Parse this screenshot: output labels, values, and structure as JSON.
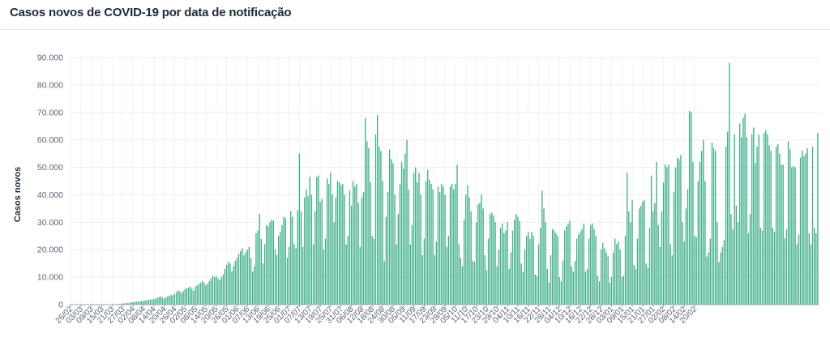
{
  "chart_data": {
    "type": "bar",
    "title": "Casos novos de COVID-19 por data de notificação",
    "ylabel": "Casos novos",
    "xlabel": "",
    "ylim": [
      0,
      90000
    ],
    "y_ticks": [
      "0",
      "10.000",
      "20.000",
      "30.000",
      "40.000",
      "50.000",
      "60.000",
      "70.000",
      "80.000",
      "90.000"
    ],
    "x_tick_labels": [
      "26/02",
      "03/03",
      "09/03",
      "15/03",
      "21/03",
      "27/03",
      "02/04",
      "08/04",
      "14/04",
      "20/04",
      "26/04",
      "02/05",
      "08/05",
      "14/05",
      "20/05",
      "26/05",
      "01/06",
      "07/06",
      "13/06",
      "19/06",
      "25/06",
      "01/07",
      "07/07",
      "13/07",
      "19/07",
      "25/07",
      "31/07",
      "06/08",
      "12/08",
      "18/08",
      "24/08",
      "30/08",
      "05/09",
      "11/09",
      "17/09",
      "23/09",
      "29/09",
      "05/10",
      "11/10",
      "17/10",
      "23/10",
      "29/10",
      "04/11",
      "10/11",
      "16/11",
      "22/11",
      "28/11",
      "04/12",
      "10/12",
      "16/12",
      "22/12",
      "28/12",
      "03/01",
      "09/01",
      "15/01",
      "21/01",
      "27/01",
      "02/02",
      "08/02",
      "14/02",
      "20/02"
    ],
    "grid": true,
    "bar_color": "#3dae86",
    "first_date": "26/02",
    "last_date": "22/02",
    "values": [
      1,
      0,
      0,
      0,
      0,
      0,
      0,
      0,
      0,
      0,
      1,
      0,
      1,
      1,
      5,
      5,
      10,
      25,
      40,
      50,
      80,
      90,
      100,
      110,
      130,
      150,
      170,
      200,
      230,
      260,
      400,
      450,
      500,
      600,
      700,
      800,
      900,
      1000,
      1050,
      1100,
      1200,
      1300,
      1400,
      1500,
      1600,
      1700,
      1800,
      1900,
      2000,
      2200,
      2500,
      2800,
      3000,
      2500,
      2200,
      2600,
      3000,
      3200,
      3600,
      3400,
      3900,
      4500,
      5200,
      4800,
      4200,
      5000,
      5600,
      6000,
      6200,
      6600,
      5800,
      5000,
      6500,
      7000,
      7500,
      8000,
      8600,
      8000,
      7000,
      7600,
      8500,
      9500,
      10500,
      10000,
      10400,
      9600,
      9000,
      10000,
      11000,
      13000,
      14500,
      15500,
      15000,
      12000,
      14000,
      16000,
      17000,
      18500,
      19500,
      20500,
      18000,
      19000,
      20000,
      21000,
      17000,
      12000,
      14000,
      26000,
      27000,
      33000,
      24000,
      15000,
      22000,
      29000,
      28500,
      30000,
      31000,
      30500,
      20000,
      18000,
      25000,
      26500,
      29000,
      32000,
      31500,
      17000,
      21000,
      34000,
      32000,
      22000,
      20500,
      34500,
      55000,
      34000,
      21000,
      39000,
      42000,
      39500,
      46500,
      40000,
      22000,
      34000,
      46500,
      47000,
      37500,
      38500,
      20000,
      24000,
      46000,
      44000,
      48000,
      40000,
      30000,
      39000,
      45000,
      44500,
      43500,
      44000,
      40000,
      22000,
      25000,
      41500,
      36000,
      45000,
      43000,
      44000,
      37000,
      21000,
      39000,
      41000,
      68000,
      59500,
      57000,
      44500,
      25000,
      24000,
      62000,
      69000,
      57500,
      56000,
      45000,
      16000,
      32000,
      41000,
      56500,
      53000,
      51500,
      40000,
      22000,
      33000,
      44000,
      52000,
      49500,
      55000,
      60000,
      42000,
      22000,
      29000,
      48000,
      50000,
      44500,
      48000,
      40000,
      18000,
      24000,
      45000,
      49000,
      45500,
      44000,
      42000,
      18000,
      23000,
      43000,
      41000,
      44000,
      43000,
      40000,
      21000,
      25000,
      43000,
      44000,
      42000,
      44000,
      51000,
      22000,
      17000,
      14000,
      31000,
      40000,
      43500,
      39000,
      34000,
      16000,
      15500,
      30000,
      36500,
      37000,
      40000,
      35000,
      18000,
      12500,
      24000,
      33000,
      33500,
      32500,
      30000,
      14000,
      20000,
      28000,
      29500,
      26000,
      27000,
      30000,
      13000,
      19000,
      27000,
      31000,
      33000,
      32000,
      30500,
      15000,
      12000,
      20000,
      25000,
      26500,
      24000,
      26500,
      25000,
      11000,
      10500,
      22000,
      28000,
      41500,
      35000,
      30000,
      13000,
      8000,
      18000,
      27500,
      27000,
      26000,
      25000,
      10000,
      8500,
      16000,
      27000,
      28500,
      29500,
      30500,
      14000,
      12000,
      16000,
      24000,
      25500,
      26500,
      27500,
      29500,
      12000,
      13000,
      24000,
      29000,
      29500,
      27500,
      25000,
      10500,
      8500,
      20000,
      22500,
      20500,
      19000,
      17500,
      8000,
      10000,
      19000,
      24000,
      22000,
      23000,
      20000,
      10000,
      10500,
      25000,
      48000,
      34000,
      30000,
      38000,
      14500,
      13000,
      24000,
      35000,
      36000,
      37500,
      38000,
      15000,
      13500,
      28000,
      47000,
      34000,
      37000,
      52000,
      29000,
      21000,
      34000,
      44500,
      51000,
      50000,
      51000,
      22000,
      18000,
      41000,
      50000,
      53500,
      53000,
      54500,
      30000,
      23000,
      35000,
      42000,
      70500,
      70000,
      52000,
      25000,
      24500,
      45000,
      52000,
      56000,
      60000,
      45000,
      17500,
      19000,
      24000,
      59000,
      57000,
      56000,
      30000,
      15500,
      19000,
      21000,
      23500,
      57500,
      63000,
      88000,
      33000,
      27500,
      62000,
      36000,
      30000,
      66000,
      61000,
      68000,
      69500,
      61000,
      26000,
      33000,
      62000,
      64500,
      51500,
      57500,
      62000,
      28000,
      27000,
      62500,
      63500,
      62000,
      58000,
      56000,
      28000,
      26500,
      57500,
      58500,
      55000,
      51000,
      51000,
      24000,
      27500,
      59500,
      56500,
      50000,
      50500,
      50000,
      22000,
      25500,
      53500,
      56000,
      54000,
      55000,
      57000,
      26000,
      22000,
      57500,
      28000,
      26000,
      62500
    ]
  }
}
